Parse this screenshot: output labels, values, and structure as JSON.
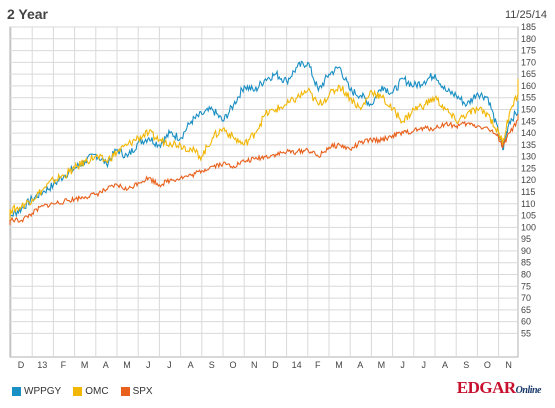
{
  "header": {
    "title": "2 Year",
    "date": "11/25/14"
  },
  "branding": {
    "name": "EDGAR",
    "suffix": "Online"
  },
  "colors": {
    "grid": "#d9d9d9",
    "axis": "#999999"
  },
  "chart_data": {
    "type": "line",
    "title": "2 Year",
    "xlabel": "",
    "ylabel": "",
    "ylim": [
      45,
      185
    ],
    "yticks": [
      55,
      60,
      65,
      70,
      75,
      80,
      85,
      90,
      95,
      100,
      105,
      110,
      115,
      120,
      125,
      130,
      135,
      140,
      145,
      150,
      155,
      160,
      165,
      170,
      175,
      180,
      185
    ],
    "x_tick_labels": [
      "D",
      "13",
      "F",
      "M",
      "A",
      "M",
      "J",
      "J",
      "A",
      "S",
      "O",
      "N",
      "D",
      "14",
      "F",
      "M",
      "A",
      "M",
      "J",
      "J",
      "A",
      "S",
      "O",
      "N"
    ],
    "x_range": [
      0,
      24.2
    ],
    "grid": true,
    "legend_position": "bottom-left",
    "series": [
      {
        "name": "WPPGY",
        "color": "#1a8fc4",
        "x": [
          -0.55,
          0,
          0.5,
          1,
          1.5,
          2,
          2.5,
          3,
          3.5,
          4,
          4.5,
          5,
          5.5,
          6,
          6.5,
          7,
          7.5,
          8,
          8.5,
          9,
          9.5,
          10,
          10.5,
          11,
          11.5,
          12,
          12.5,
          13,
          13.5,
          14,
          14.5,
          15,
          15.5,
          16,
          16.5,
          17,
          17.5,
          18,
          18.5,
          19,
          19.5,
          20,
          20.5,
          21,
          21.5,
          22,
          22.5,
          23,
          23.2,
          23.5,
          24,
          24.2
        ],
        "y": [
          102,
          105,
          108,
          112,
          115,
          118,
          122,
          125,
          128,
          131,
          127,
          133,
          130,
          136,
          138,
          135,
          140,
          138,
          145,
          148,
          150,
          145,
          152,
          160,
          158,
          163,
          165,
          162,
          168,
          170,
          158,
          165,
          168,
          158,
          156,
          152,
          160,
          157,
          163,
          160,
          162,
          165,
          158,
          156,
          152,
          157,
          155,
          140,
          133,
          145,
          150,
          153
        ]
      },
      {
        "name": "OMC",
        "color": "#f2b705",
        "x": [
          -0.55,
          0,
          0.5,
          1,
          1.5,
          2,
          2.5,
          3,
          3.5,
          4,
          4.5,
          5,
          5.5,
          6,
          6.5,
          7,
          7.5,
          8,
          8.5,
          9,
          9.5,
          10,
          10.5,
          11,
          11.5,
          12,
          12.5,
          13,
          13.5,
          14,
          14.5,
          15,
          15.5,
          16,
          16.5,
          17,
          17.5,
          18,
          18.5,
          19,
          19.5,
          20,
          20.5,
          21,
          21.5,
          22,
          22.5,
          23,
          23.2,
          23.5,
          24,
          24.2
        ],
        "y": [
          104,
          107,
          109,
          112,
          116,
          120,
          122,
          125,
          128,
          130,
          128,
          132,
          135,
          138,
          140,
          137,
          136,
          135,
          133,
          130,
          138,
          142,
          138,
          135,
          140,
          148,
          150,
          152,
          155,
          158,
          152,
          156,
          160,
          155,
          150,
          158,
          155,
          150,
          145,
          150,
          152,
          155,
          150,
          145,
          148,
          150,
          148,
          140,
          136,
          148,
          158,
          163
        ]
      },
      {
        "name": "SPX",
        "color": "#e8601c",
        "x": [
          -0.55,
          0,
          0.5,
          1,
          1.5,
          2,
          2.5,
          3,
          3.5,
          4,
          4.5,
          5,
          5.5,
          6,
          6.5,
          7,
          7.5,
          8,
          8.5,
          9,
          9.5,
          10,
          10.5,
          11,
          11.5,
          12,
          12.5,
          13,
          13.5,
          14,
          14.5,
          15,
          15.5,
          16,
          16.5,
          17,
          17.5,
          18,
          18.5,
          19,
          19.5,
          20,
          20.5,
          21,
          21.5,
          22,
          22.5,
          23,
          23.2,
          23.5,
          24,
          24.2
        ],
        "y": [
          101,
          103,
          103,
          106,
          109,
          110,
          111,
          112,
          113,
          114,
          116,
          118,
          116,
          119,
          121,
          118,
          120,
          121,
          122,
          124,
          126,
          127,
          126,
          128,
          129,
          130,
          131,
          132,
          132,
          133,
          130,
          134,
          135,
          133,
          136,
          137,
          137,
          139,
          140,
          141,
          142,
          142,
          144,
          143,
          144,
          143,
          142,
          138,
          134,
          140,
          146,
          148
        ]
      }
    ]
  }
}
